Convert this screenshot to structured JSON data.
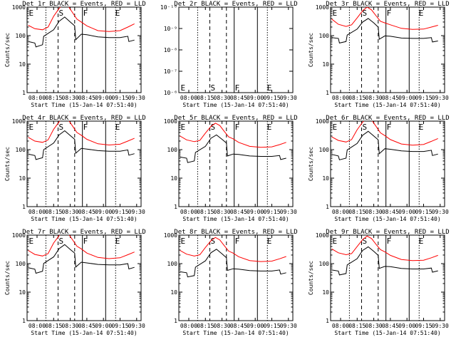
{
  "chart_data": [
    {
      "type": "line",
      "title": "Det 1r BLACK = Events, RED = LLD",
      "xlabel": "Start Time (15-Jan-14 07:51:40)",
      "ylabel": "Counts/sec",
      "x_tick_labels": [
        "08:00",
        "08:15",
        "08:30",
        "08:45",
        "09:00",
        "09:15",
        "09:30"
      ],
      "y_tick_labels": [
        "1",
        "10",
        "100",
        "1000"
      ],
      "markers": [
        {
          "label": "E",
          "time": "07:52"
        },
        {
          "label": "S",
          "time": "08:19"
        },
        {
          "label": "F",
          "time": "08:41"
        },
        {
          "label": "E",
          "time": "09:10"
        }
      ],
      "series": [
        {
          "color": "#000000",
          "x": [
            "07:52",
            "07:58",
            "07:59",
            "08:05",
            "08:06",
            "08:15",
            "08:20",
            "08:25",
            "08:30",
            "08:34",
            "08:35",
            "08:40",
            "08:45",
            "08:55",
            "09:05",
            "09:15",
            "09:22",
            "09:23",
            "09:28"
          ],
          "y": [
            62,
            55,
            40,
            48,
            95,
            160,
            320,
            450,
            300,
            220,
            72,
            112,
            108,
            90,
            85,
            85,
            95,
            62,
            70
          ]
        },
        {
          "color": "#ff0000",
          "x": [
            "07:52",
            "07:58",
            "08:05",
            "08:10",
            "08:15",
            "08:20",
            "08:24",
            "08:28",
            "08:32",
            "08:36",
            "08:40",
            "08:45",
            "08:55",
            "09:05",
            "09:15",
            "09:22",
            "09:28"
          ],
          "y": [
            230,
            175,
            160,
            200,
            480,
            900,
            1300,
            1100,
            650,
            380,
            300,
            220,
            150,
            140,
            150,
            200,
            260
          ]
        }
      ]
    },
    {
      "type": "line",
      "title": "Det 2r BLACK = Events, RED = LLD",
      "xlabel": "Start Time (15-Jan-14 07:51:40)",
      "ylabel": "",
      "x_tick_labels": [
        "08:00",
        "08:15",
        "08:30",
        "08:45",
        "09:00",
        "09:15",
        "09:30"
      ],
      "y_tick_labels": [
        "10⁻⁶",
        "10⁻⁷",
        "10⁻⁸",
        "10⁻⁹",
        "10⁻¹⁰"
      ],
      "markers": [
        {
          "label": "E",
          "time": "07:52"
        },
        {
          "label": "S",
          "time": "08:19"
        },
        {
          "label": "F",
          "time": "08:41"
        },
        {
          "label": "E",
          "time": "09:10"
        }
      ],
      "series": []
    },
    {
      "type": "line",
      "title": "Det 3r BLACK = Events, RED = LLD",
      "xlabel": "Start Time (15-Jan-14 07:51:40)",
      "ylabel": "Counts/sec",
      "x_tick_labels": [
        "08:00",
        "08:15",
        "08:30",
        "08:45",
        "09:00",
        "09:15",
        "09:30"
      ],
      "y_tick_labels": [
        "1",
        "10",
        "100",
        "1000"
      ],
      "markers": [
        {
          "label": "E",
          "time": "07:52"
        },
        {
          "label": "S",
          "time": "08:19"
        },
        {
          "label": "F",
          "time": "08:41"
        },
        {
          "label": "E",
          "time": "09:10"
        }
      ],
      "series": [
        {
          "color": "#000000",
          "x": [
            "07:52",
            "07:58",
            "07:59",
            "08:05",
            "08:06",
            "08:15",
            "08:20",
            "08:25",
            "08:30",
            "08:34",
            "08:35",
            "08:40",
            "08:45",
            "08:55",
            "09:05",
            "09:15",
            "09:22",
            "09:23",
            "09:28"
          ],
          "y": [
            85,
            80,
            55,
            62,
            105,
            170,
            300,
            400,
            280,
            200,
            75,
            98,
            95,
            82,
            80,
            80,
            85,
            60,
            65
          ]
        },
        {
          "color": "#ff0000",
          "x": [
            "07:52",
            "07:58",
            "08:05",
            "08:10",
            "08:15",
            "08:20",
            "08:24",
            "08:28",
            "08:32",
            "08:36",
            "08:40",
            "08:45",
            "08:55",
            "09:05",
            "09:15",
            "09:22",
            "09:28"
          ],
          "y": [
            380,
            250,
            210,
            240,
            420,
            750,
            1000,
            800,
            500,
            320,
            280,
            240,
            180,
            165,
            170,
            200,
            230
          ]
        }
      ]
    },
    {
      "type": "line",
      "title": "Det 4r BLACK = Events, RED = LLD",
      "xlabel": "Start Time (15-Jan-14 07:51:40)",
      "ylabel": "Counts/sec",
      "x_tick_labels": [
        "08:00",
        "08:15",
        "08:30",
        "08:45",
        "09:00",
        "09:15",
        "09:30"
      ],
      "y_tick_labels": [
        "1",
        "10",
        "100",
        "1000"
      ],
      "markers": [
        {
          "label": "E",
          "time": "07:52"
        },
        {
          "label": "S",
          "time": "08:19"
        },
        {
          "label": "F",
          "time": "08:41"
        },
        {
          "label": "E",
          "time": "09:10"
        }
      ],
      "series": [
        {
          "color": "#000000",
          "x": [
            "07:52",
            "07:58",
            "07:59",
            "08:05",
            "08:06",
            "08:15",
            "08:20",
            "08:25",
            "08:30",
            "08:34",
            "08:35",
            "08:40",
            "08:45",
            "08:55",
            "09:05",
            "09:15",
            "09:22",
            "09:23",
            "09:28"
          ],
          "y": [
            70,
            62,
            45,
            52,
            100,
            170,
            330,
            460,
            310,
            230,
            75,
            110,
            105,
            92,
            88,
            88,
            98,
            64,
            72
          ]
        },
        {
          "color": "#ff0000",
          "x": [
            "07:52",
            "07:58",
            "08:05",
            "08:10",
            "08:15",
            "08:20",
            "08:24",
            "08:28",
            "08:32",
            "08:36",
            "08:40",
            "08:45",
            "08:55",
            "09:05",
            "09:15",
            "09:22",
            "09:28"
          ],
          "y": [
            270,
            200,
            180,
            220,
            520,
            950,
            1400,
            1150,
            680,
            400,
            320,
            230,
            160,
            145,
            155,
            200,
            250
          ]
        }
      ]
    },
    {
      "type": "line",
      "title": "Det 5r BLACK = Events, RED = LLD",
      "xlabel": "Start Time (15-Jan-14 07:51:40)",
      "ylabel": "",
      "x_tick_labels": [
        "08:00",
        "08:15",
        "08:30",
        "08:45",
        "09:00",
        "09:15",
        "09:30"
      ],
      "y_tick_labels": [
        "1",
        "10",
        "100",
        "1000"
      ],
      "markers": [
        {
          "label": "E",
          "time": "07:52"
        },
        {
          "label": "S",
          "time": "08:19"
        },
        {
          "label": "F",
          "time": "08:41"
        },
        {
          "label": "E",
          "time": "09:10"
        }
      ],
      "series": [
        {
          "color": "#000000",
          "x": [
            "07:52",
            "07:58",
            "07:59",
            "08:05",
            "08:06",
            "08:15",
            "08:20",
            "08:25",
            "08:30",
            "08:34",
            "08:35",
            "08:40",
            "08:45",
            "08:55",
            "09:05",
            "09:15",
            "09:22",
            "09:23",
            "09:28"
          ],
          "y": [
            55,
            50,
            35,
            40,
            80,
            130,
            250,
            330,
            230,
            170,
            60,
            70,
            68,
            60,
            58,
            58,
            62,
            45,
            50
          ]
        },
        {
          "color": "#ff0000",
          "x": [
            "07:52",
            "07:58",
            "08:05",
            "08:10",
            "08:15",
            "08:20",
            "08:24",
            "08:28",
            "08:32",
            "08:36",
            "08:40",
            "08:45",
            "08:55",
            "09:05",
            "09:15",
            "09:22",
            "09:28"
          ],
          "y": [
            300,
            220,
            190,
            210,
            380,
            650,
            850,
            700,
            440,
            280,
            240,
            180,
            130,
            120,
            125,
            150,
            180
          ]
        }
      ]
    },
    {
      "type": "line",
      "title": "Det 6r BLACK = Events, RED = LLD",
      "xlabel": "Start Time (15-Jan-14 07:51:40)",
      "ylabel": "Counts/sec",
      "x_tick_labels": [
        "08:00",
        "08:15",
        "08:30",
        "08:45",
        "09:00",
        "09:15",
        "09:30"
      ],
      "y_tick_labels": [
        "1",
        "10",
        "100",
        "1000"
      ],
      "markers": [
        {
          "label": "E",
          "time": "07:52"
        },
        {
          "label": "S",
          "time": "08:19"
        },
        {
          "label": "F",
          "time": "08:41"
        },
        {
          "label": "E",
          "time": "09:10"
        }
      ],
      "series": [
        {
          "color": "#000000",
          "x": [
            "07:52",
            "07:58",
            "07:59",
            "08:05",
            "08:06",
            "08:15",
            "08:20",
            "08:25",
            "08:30",
            "08:34",
            "08:35",
            "08:40",
            "08:45",
            "08:55",
            "09:05",
            "09:15",
            "09:22",
            "09:23",
            "09:28"
          ],
          "y": [
            68,
            60,
            44,
            50,
            98,
            165,
            320,
            440,
            300,
            220,
            72,
            108,
            103,
            90,
            86,
            86,
            95,
            62,
            70
          ]
        },
        {
          "color": "#ff0000",
          "x": [
            "07:52",
            "07:58",
            "08:05",
            "08:10",
            "08:15",
            "08:20",
            "08:24",
            "08:28",
            "08:32",
            "08:36",
            "08:40",
            "08:45",
            "08:55",
            "09:05",
            "09:15",
            "09:22",
            "09:28"
          ],
          "y": [
            280,
            210,
            185,
            225,
            500,
            920,
            1350,
            1100,
            660,
            390,
            310,
            225,
            158,
            143,
            152,
            195,
            245
          ]
        }
      ]
    },
    {
      "type": "line",
      "title": "Det 7r BLACK = Events, RED = LLD",
      "xlabel": "Start Time (15-Jan-14 07:51:40)",
      "ylabel": "Counts/sec",
      "x_tick_labels": [
        "08:00",
        "08:15",
        "08:30",
        "08:45",
        "09:00",
        "09:15",
        "09:30"
      ],
      "y_tick_labels": [
        "1",
        "10",
        "100",
        "1000"
      ],
      "markers": [
        {
          "label": "E",
          "time": "07:52"
        },
        {
          "label": "S",
          "time": "08:19"
        },
        {
          "label": "F",
          "time": "08:41"
        },
        {
          "label": "E",
          "time": "09:10"
        }
      ],
      "series": [
        {
          "color": "#000000",
          "x": [
            "07:52",
            "07:58",
            "07:59",
            "08:05",
            "08:06",
            "08:15",
            "08:20",
            "08:25",
            "08:30",
            "08:34",
            "08:35",
            "08:40",
            "08:45",
            "08:55",
            "09:05",
            "09:15",
            "09:22",
            "09:23",
            "09:28"
          ],
          "y": [
            72,
            64,
            46,
            54,
            102,
            172,
            335,
            465,
            315,
            235,
            76,
            112,
            106,
            94,
            90,
            90,
            100,
            65,
            74
          ]
        },
        {
          "color": "#ff0000",
          "x": [
            "07:52",
            "07:58",
            "08:05",
            "08:10",
            "08:15",
            "08:20",
            "08:24",
            "08:28",
            "08:32",
            "08:36",
            "08:40",
            "08:45",
            "08:55",
            "09:05",
            "09:15",
            "09:22",
            "09:28"
          ],
          "y": [
            290,
            210,
            185,
            225,
            530,
            960,
            1420,
            1160,
            690,
            410,
            330,
            235,
            165,
            150,
            160,
            205,
            255
          ]
        }
      ]
    },
    {
      "type": "line",
      "title": "Det 8r BLACK = Events, RED = LLD",
      "xlabel": "Start Time (15-Jan-14 07:51:40)",
      "ylabel": "",
      "x_tick_labels": [
        "08:00",
        "08:15",
        "08:30",
        "08:45",
        "09:00",
        "09:15",
        "09:30"
      ],
      "y_tick_labels": [
        "1",
        "10",
        "100",
        "1000"
      ],
      "markers": [
        {
          "label": "E",
          "time": "07:52"
        },
        {
          "label": "S",
          "time": "08:19"
        },
        {
          "label": "F",
          "time": "08:41"
        },
        {
          "label": "E",
          "time": "09:10"
        }
      ],
      "series": [
        {
          "color": "#000000",
          "x": [
            "07:52",
            "07:58",
            "07:59",
            "08:05",
            "08:06",
            "08:15",
            "08:20",
            "08:25",
            "08:30",
            "08:34",
            "08:35",
            "08:40",
            "08:45",
            "08:55",
            "09:05",
            "09:15",
            "09:22",
            "09:23",
            "09:28"
          ],
          "y": [
            52,
            48,
            34,
            38,
            75,
            125,
            240,
            320,
            220,
            160,
            58,
            66,
            64,
            57,
            55,
            55,
            60,
            43,
            48
          ]
        },
        {
          "color": "#ff0000",
          "x": [
            "07:52",
            "07:58",
            "08:05",
            "08:10",
            "08:15",
            "08:20",
            "08:24",
            "08:28",
            "08:32",
            "08:36",
            "08:40",
            "08:45",
            "08:55",
            "09:05",
            "09:15",
            "09:22",
            "09:28"
          ],
          "y": [
            290,
            215,
            185,
            205,
            370,
            630,
            830,
            680,
            430,
            275,
            235,
            175,
            128,
            118,
            122,
            148,
            178
          ]
        }
      ]
    },
    {
      "type": "line",
      "title": "Det 9r BLACK = Events, RED = LLD",
      "xlabel": "Start Time (15-Jan-14 07:51:40)",
      "ylabel": "Counts/sec",
      "x_tick_labels": [
        "08:00",
        "08:15",
        "08:30",
        "08:45",
        "09:00",
        "09:15",
        "09:30"
      ],
      "y_tick_labels": [
        "1",
        "10",
        "100",
        "1000"
      ],
      "markers": [
        {
          "label": "E",
          "time": "07:52"
        },
        {
          "label": "S",
          "time": "08:19"
        },
        {
          "label": "F",
          "time": "08:41"
        },
        {
          "label": "E",
          "time": "09:10"
        }
      ],
      "series": [
        {
          "color": "#000000",
          "x": [
            "07:52",
            "07:58",
            "07:59",
            "08:05",
            "08:06",
            "08:15",
            "08:20",
            "08:25",
            "08:30",
            "08:34",
            "08:35",
            "08:40",
            "08:45",
            "08:55",
            "09:05",
            "09:15",
            "09:22",
            "09:23",
            "09:28"
          ],
          "y": [
            60,
            55,
            40,
            45,
            90,
            150,
            290,
            390,
            270,
            195,
            68,
            80,
            78,
            68,
            65,
            65,
            70,
            50,
            56
          ]
        },
        {
          "color": "#ff0000",
          "x": [
            "07:52",
            "07:58",
            "08:05",
            "08:10",
            "08:15",
            "08:20",
            "08:24",
            "08:28",
            "08:32",
            "08:36",
            "08:40",
            "08:45",
            "08:55",
            "09:05",
            "09:15",
            "09:22",
            "09:28"
          ],
          "y": [
            330,
            240,
            205,
            225,
            400,
            700,
            920,
            760,
            480,
            310,
            260,
            195,
            140,
            128,
            132,
            160,
            195
          ]
        }
      ]
    }
  ]
}
